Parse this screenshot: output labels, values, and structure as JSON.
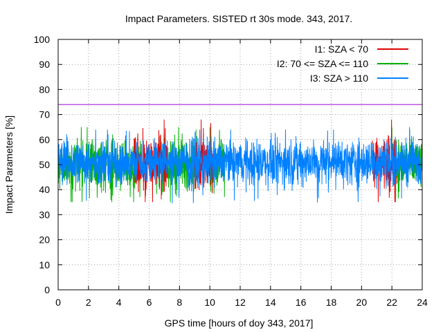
{
  "chart_data": {
    "type": "line",
    "title": "Impact Parameters. SISTED rt 30s mode. 343, 2017.",
    "xlabel": "GPS time [hours of doy 343, 2017]",
    "ylabel": "Impact Parameters [%]",
    "xlim": [
      0,
      24
    ],
    "ylim": [
      0,
      100
    ],
    "xticks": [
      0,
      2,
      4,
      6,
      8,
      10,
      12,
      14,
      16,
      18,
      20,
      22,
      24
    ],
    "yticks": [
      0,
      10,
      20,
      30,
      40,
      50,
      60,
      70,
      80,
      90,
      100
    ],
    "grid": true,
    "legend_position": "top-right",
    "reference_line": {
      "y": 74,
      "color": "#9400d3"
    },
    "series": [
      {
        "name": "I1: SZA < 70",
        "color": "#e00000",
        "mean": 51,
        "x_ranges": [
          [
            5.0,
            7.2
          ],
          [
            9.0,
            10.2
          ],
          [
            20.7,
            22.3
          ]
        ],
        "approx_max": 68,
        "approx_min": 35
      },
      {
        "name": "I2: 70 <= SZA <= 110",
        "color": "#00b000",
        "mean": 50,
        "x_ranges": [
          [
            0,
            5.5
          ],
          [
            6.5,
            9.2
          ],
          [
            10.0,
            11.0
          ],
          [
            22.0,
            24.0
          ]
        ],
        "approx_max": 65,
        "approx_min": 35
      },
      {
        "name": "I3: SZA > 110",
        "color": "#0080ff",
        "mean": 51,
        "x_ranges": [
          [
            0,
            24
          ]
        ],
        "approx_max": 64,
        "approx_min": 34
      }
    ]
  }
}
